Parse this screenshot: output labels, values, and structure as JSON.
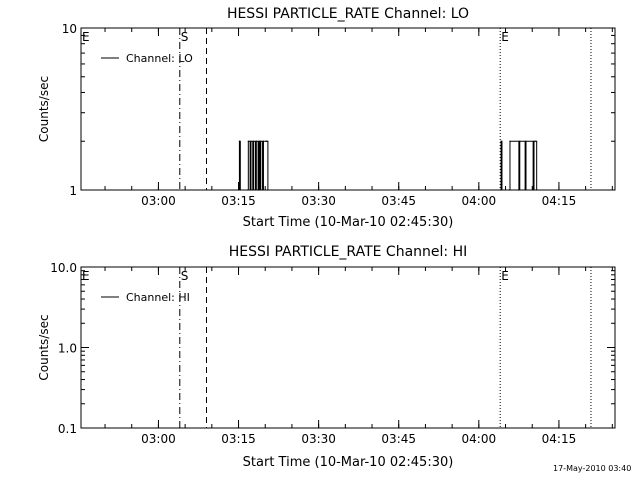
{
  "footer": {
    "timestamp": "17-May-2010 03:40"
  },
  "colors": {
    "axes": "#000000",
    "background": "#ffffff",
    "data": "#000000"
  },
  "chart_data": [
    {
      "type": "line",
      "title": "HESSI PARTICLE_RATE Channel: LO",
      "xlabel": "Start Time (10-Mar-10 02:45:30)",
      "ylabel": "Counts/sec",
      "yscale": "log",
      "xlim": [
        "02:45:30",
        "04:25:30"
      ],
      "ylim": [
        1,
        10
      ],
      "x_ticks": [
        "03:00",
        "03:15",
        "03:30",
        "03:45",
        "04:00",
        "04:15"
      ],
      "y_tick_labels": [
        "1",
        "10"
      ],
      "legend": {
        "position": "top-left",
        "entries": [
          "Channel: LO"
        ]
      },
      "series": [
        {
          "name": "Channel: LO",
          "x": [
            "03:15:00",
            "03:15:10",
            "03:15:20",
            "03:16:40",
            "03:16:50",
            "03:17:10",
            "03:17:20",
            "03:17:40",
            "03:17:50",
            "03:18:10",
            "03:18:20",
            "03:18:40",
            "03:18:50",
            "03:19:00",
            "03:19:10",
            "03:19:30",
            "03:19:40",
            "03:20:10",
            "03:20:20",
            "03:20:30",
            "04:04:00",
            "04:04:10",
            "04:04:20",
            "04:05:40",
            "04:05:50",
            "04:07:30",
            "04:07:40",
            "04:08:40",
            "04:08:50",
            "04:10:10",
            "04:10:20",
            "04:10:40",
            "04:10:50"
          ],
          "y": [
            1,
            2,
            1,
            1,
            2,
            1,
            2,
            1,
            2,
            1,
            2,
            1,
            2,
            1,
            2,
            1,
            2,
            2,
            2,
            1,
            1,
            2,
            1,
            1,
            2,
            1,
            2,
            1,
            2,
            1,
            2,
            2,
            1
          ]
        }
      ],
      "annotations": [
        {
          "label": "E",
          "time": "02:45:30",
          "linestyle": "none"
        },
        {
          "label": "S",
          "time": "03:04:00",
          "linestyle": "dash-dot"
        },
        {
          "label": "",
          "time": "03:09:00",
          "linestyle": "dashed"
        },
        {
          "label": "E",
          "time": "04:04:00",
          "linestyle": "dotted"
        },
        {
          "label": "",
          "time": "04:21:00",
          "linestyle": "dotted"
        }
      ]
    },
    {
      "type": "line",
      "title": "HESSI PARTICLE_RATE Channel: HI",
      "xlabel": "Start Time (10-Mar-10 02:45:30)",
      "ylabel": "Counts/sec",
      "yscale": "log",
      "xlim": [
        "02:45:30",
        "04:25:30"
      ],
      "ylim": [
        0.1,
        10
      ],
      "x_ticks": [
        "03:00",
        "03:15",
        "03:30",
        "03:45",
        "04:00",
        "04:15"
      ],
      "y_tick_labels": [
        "0.1",
        "1.0",
        "10.0"
      ],
      "legend": {
        "position": "top-left",
        "entries": [
          "Channel: HI"
        ]
      },
      "series": [
        {
          "name": "Channel: HI",
          "x": [],
          "y": []
        }
      ],
      "annotations": [
        {
          "label": "E",
          "time": "02:45:30",
          "linestyle": "none"
        },
        {
          "label": "S",
          "time": "03:04:00",
          "linestyle": "dash-dot"
        },
        {
          "label": "",
          "time": "03:09:00",
          "linestyle": "dashed"
        },
        {
          "label": "E",
          "time": "04:04:00",
          "linestyle": "dotted"
        },
        {
          "label": "",
          "time": "04:21:00",
          "linestyle": "dotted"
        }
      ]
    }
  ]
}
